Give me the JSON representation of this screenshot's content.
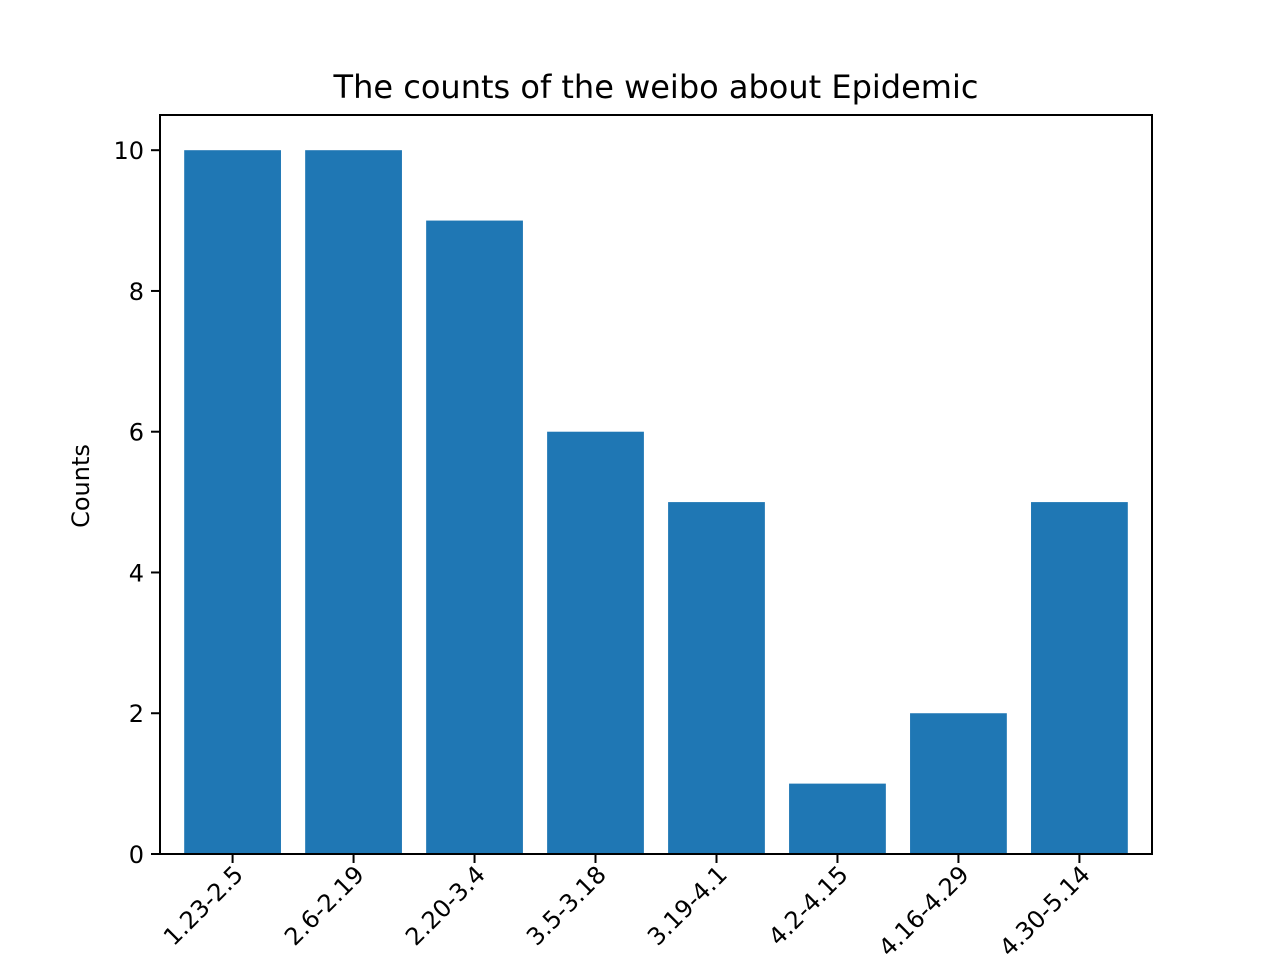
{
  "chart_data": {
    "type": "bar",
    "title": "The counts of the weibo about Epidemic",
    "xlabel": "",
    "ylabel": "Counts",
    "categories": [
      "1.23-2.5",
      "2.6-2.19",
      "2.20-3.4",
      "3.5-3.18",
      "3.19-4.1",
      "4.2-4.15",
      "4.16-4.29",
      "4.30-5.14"
    ],
    "values": [
      10,
      10,
      9,
      6,
      5,
      1,
      2,
      5
    ],
    "ylim": [
      0,
      10.5
    ],
    "yticks": [
      0,
      2,
      4,
      6,
      8,
      10
    ],
    "grid": false,
    "colors": {
      "bar": "#1f77b4",
      "axis": "#000000"
    }
  }
}
